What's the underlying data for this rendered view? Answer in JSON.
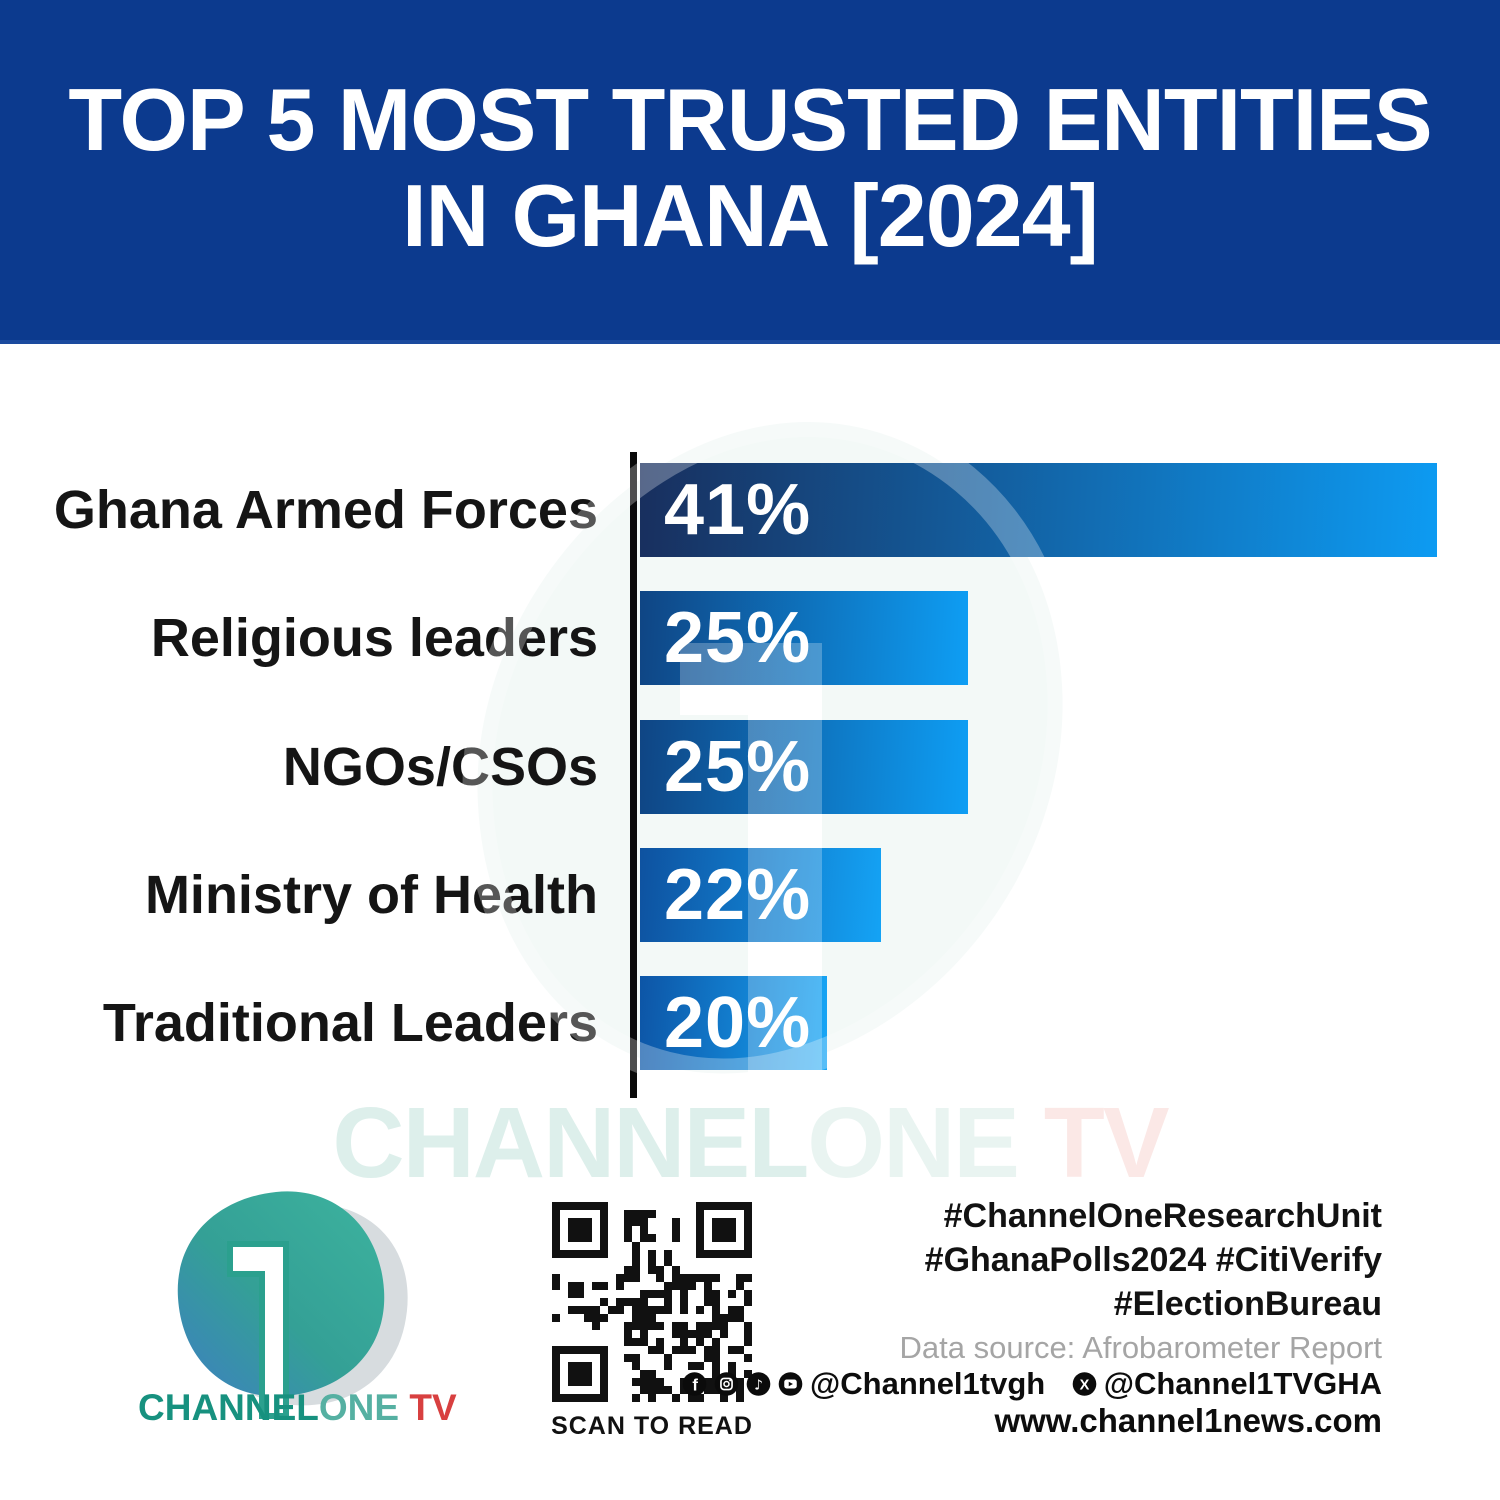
{
  "title": {
    "line1": "TOP 5 MOST TRUSTED ENTITIES",
    "line2": "IN GHANA [2024]"
  },
  "chart_data": {
    "type": "bar",
    "orientation": "horizontal",
    "title": "Top 5 Most Trusted Entities in Ghana [2024]",
    "categories": [
      "Ghana Armed Forces",
      "Religious leaders",
      "NGOs/CSOs",
      "Ministry of Health",
      "Traditional Leaders"
    ],
    "values": [
      41,
      25,
      25,
      22,
      20
    ],
    "value_labels": [
      "41%",
      "25%",
      "25%",
      "22%",
      "20%"
    ],
    "xlabel": "",
    "ylabel": "",
    "xlim": [
      0,
      45
    ],
    "grid": false,
    "legend": false,
    "source": "Data source: Afrobarometer Report"
  },
  "rows": [
    {
      "label": "Ghana Armed Forces",
      "value_label": "41%"
    },
    {
      "label": "Religious leaders",
      "value_label": "25%"
    },
    {
      "label": "NGOs/CSOs",
      "value_label": "25%"
    },
    {
      "label": "Ministry of Health",
      "value_label": "22%"
    },
    {
      "label": "Traditional Leaders",
      "value_label": "20%"
    }
  ],
  "watermark": {
    "part1": "CHANNEL",
    "part2": "ONE",
    "part3": " TV"
  },
  "logo": {
    "digit": "1",
    "word1": "CHANNEL",
    "word2": "ONE",
    "word3": " TV"
  },
  "qr": {
    "caption": "SCAN TO READ"
  },
  "footer": {
    "hashtags_line1": "#ChannelOneResearchUnit",
    "hashtags_line2": "#GhanaPolls2024 #CitiVerify",
    "hashtags_line3": "#ElectionBureau",
    "data_source": "Data source: Afrobarometer Report",
    "handle1": "@Channel1tvgh",
    "handle2": "@Channel1TVGHA",
    "website": "www.channel1news.com"
  },
  "colors": {
    "banner_blue": "#0c3a8e",
    "bar_gradient_dark": "#182f5e",
    "bar_gradient_light": "#0d9bf2",
    "axis_black": "#0a0a0a",
    "logo_teal": "#17917f",
    "logo_red": "#d84040",
    "source_gray": "#a5a5a5"
  }
}
